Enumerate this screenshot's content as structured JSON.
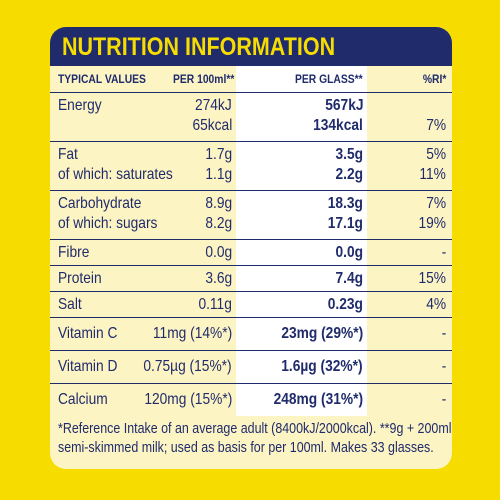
{
  "title": "NUTRITION INFORMATION",
  "columns": {
    "typical": "TYPICAL VALUES",
    "per100": "PER 100ml**",
    "perglass": "PER GLASS**",
    "ri": "%RI*"
  },
  "rows": [
    {
      "lines": [
        {
          "label": "Energy",
          "per100": "274kJ",
          "glass": "567kJ",
          "ri": ""
        },
        {
          "label": "",
          "per100": "65kcal",
          "glass": "134kcal",
          "ri": "7%"
        }
      ]
    },
    {
      "lines": [
        {
          "label": "Fat",
          "per100": "1.7g",
          "glass": "3.5g",
          "ri": "5%"
        },
        {
          "label": "of which: saturates",
          "per100": "1.1g",
          "glass": "2.2g",
          "ri": "11%"
        }
      ]
    },
    {
      "lines": [
        {
          "label": "Carbohydrate",
          "per100": "8.9g",
          "glass": "18.3g",
          "ri": "7%"
        },
        {
          "label": "of which: sugars",
          "per100": "8.2g",
          "glass": "17.1g",
          "ri": "19%"
        }
      ]
    },
    {
      "lines": [
        {
          "label": "Fibre",
          "per100": "0.0g",
          "glass": "0.0g",
          "ri": "-"
        }
      ]
    },
    {
      "lines": [
        {
          "label": "Protein",
          "per100": "3.6g",
          "glass": "7.4g",
          "ri": "15%"
        }
      ]
    },
    {
      "lines": [
        {
          "label": "Salt",
          "per100": "0.11g",
          "glass": "0.23g",
          "ri": "4%"
        }
      ]
    },
    {
      "lines": [
        {
          "label": "Vitamin C",
          "per100": "11mg (14%*)",
          "glass": "23mg (29%*)",
          "ri": "-"
        }
      ]
    },
    {
      "lines": [
        {
          "label": "Vitamin D",
          "per100": "0.75µg (15%*)",
          "glass": "1.6µg (32%*)",
          "ri": "-"
        }
      ]
    },
    {
      "lines": [
        {
          "label": "Calcium",
          "per100": "120mg (15%*)",
          "glass": "248mg (31%*)",
          "ri": "-"
        }
      ]
    }
  ],
  "footnote": {
    "line1": "*Reference Intake of an average adult (8400kJ/2000kcal). **9g + 200ml",
    "line2": "semi-skimmed milk; used as basis for per 100ml. Makes 33 glasses."
  },
  "colors": {
    "background": "#f7dc00",
    "panel": "#fdf4c4",
    "navy": "#1f2b6b",
    "glass_column": "#ffffff"
  }
}
